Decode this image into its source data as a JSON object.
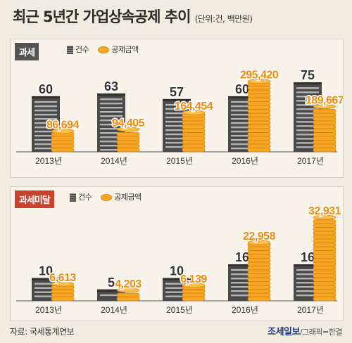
{
  "header": {
    "title": "최근 5년간 가업상속공제 추이",
    "unit": "(단위:건, 백만원)"
  },
  "legend": {
    "count": "건수",
    "amount": "공제금액"
  },
  "colors": {
    "badge_taxed": "#555555",
    "badge_untaxed": "#c8432b",
    "coin": "#f5a623",
    "building": "#4a4a4a"
  },
  "footer": {
    "source": "자료: 국세통계연보",
    "brand": "조세일보",
    "credit": "/그래픽=한결"
  },
  "chart_data": [
    {
      "type": "bar",
      "panel_label": "과세",
      "categories": [
        "2013년",
        "2014년",
        "2015년",
        "2016년",
        "2017년"
      ],
      "series": [
        {
          "name": "건수",
          "values": [
            60,
            63,
            57,
            60,
            75
          ],
          "labels": [
            "60",
            "63",
            "57",
            "60",
            "75"
          ]
        },
        {
          "name": "공제금액",
          "values": [
            86694,
            94405,
            164454,
            295420,
            189667
          ],
          "labels": [
            "86,694",
            "94,405",
            "164,454",
            "295,420",
            "189,667"
          ]
        }
      ],
      "ylim_count": [
        0,
        85
      ],
      "ylim_amount": [
        0,
        330000
      ]
    },
    {
      "type": "bar",
      "panel_label": "과세미달",
      "categories": [
        "2013년",
        "2014년",
        "2015년",
        "2016년",
        "2017년"
      ],
      "series": [
        {
          "name": "건수",
          "values": [
            10,
            5,
            10,
            16,
            16
          ],
          "labels": [
            "10",
            "5",
            "10",
            "16",
            "16"
          ]
        },
        {
          "name": "공제금액",
          "values": [
            6613,
            4203,
            6139,
            22958,
            32931
          ],
          "labels": [
            "6,613",
            "4,203",
            "6,139",
            "22,958",
            "32,931"
          ]
        }
      ],
      "ylim_count": [
        0,
        40
      ],
      "ylim_amount": [
        0,
        36000
      ]
    }
  ]
}
